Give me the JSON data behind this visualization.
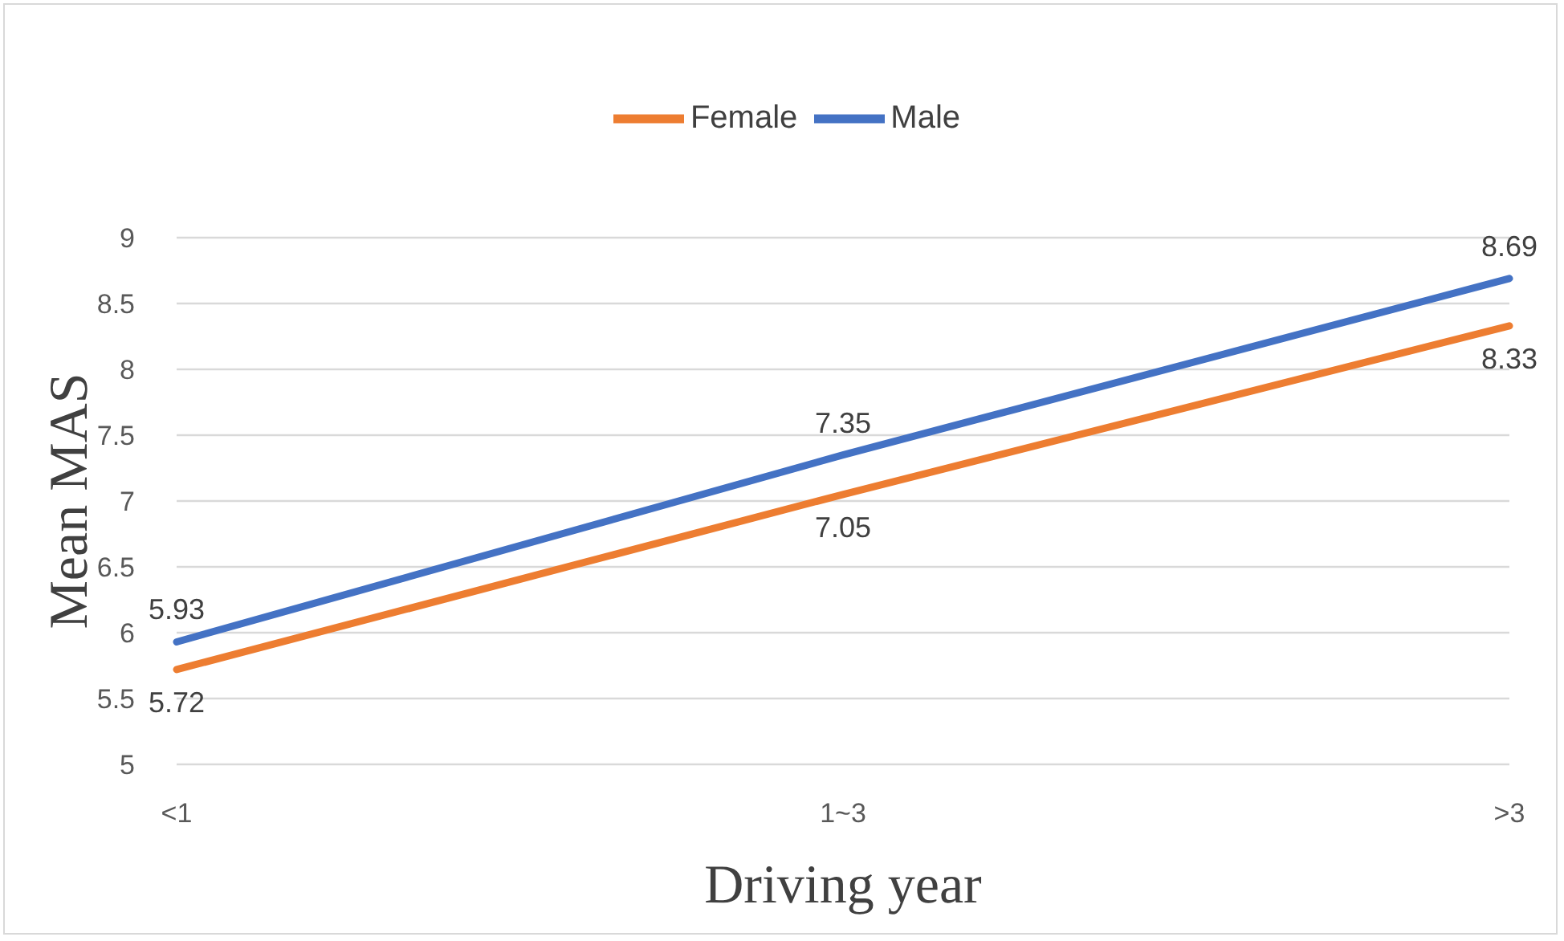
{
  "chart_data": {
    "type": "line",
    "xlabel": "Driving year",
    "ylabel": "Mean MAS",
    "categories": [
      "<1",
      "1~3",
      ">3"
    ],
    "series": [
      {
        "name": "Male",
        "color": "#4472c4",
        "values": [
          5.93,
          7.35,
          8.69
        ]
      },
      {
        "name": "Female",
        "color": "#ed7d31",
        "values": [
          5.72,
          7.05,
          8.33
        ]
      }
    ],
    "ylim": [
      5,
      9
    ],
    "yticks": [
      5,
      5.5,
      6,
      6.5,
      7,
      7.5,
      8,
      8.5,
      9
    ],
    "grid": "y",
    "legend": "top",
    "data_labels": true,
    "marker": "none",
    "line_style": "solid"
  }
}
